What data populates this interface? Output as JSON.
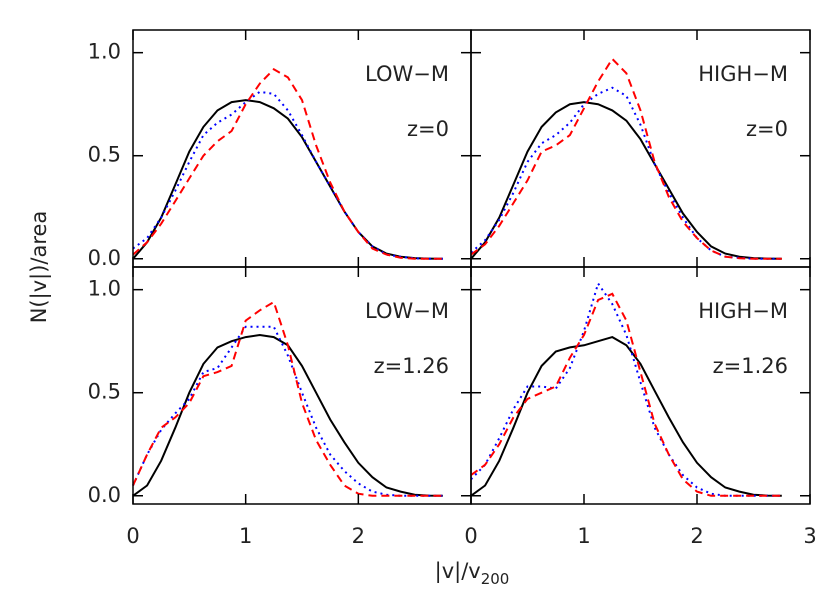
{
  "xlabel": "|v|/v",
  "xlabel_sub": "200",
  "ylabel": "N(|v|)/area",
  "chart_data": [
    {
      "type": "line",
      "labels": [
        "LOW−M",
        "z=0"
      ],
      "xlim": [
        0,
        3
      ],
      "ylim": [
        -0.04,
        1.11
      ],
      "yticks": [
        {
          "value": 0,
          "label": "0.0"
        },
        {
          "value": 0.5,
          "label": "0.5"
        },
        {
          "value": 1,
          "label": "1.0"
        }
      ],
      "x": [
        0,
        0.125,
        0.25,
        0.375,
        0.5,
        0.625,
        0.75,
        0.875,
        1,
        1.125,
        1.25,
        1.375,
        1.5,
        1.625,
        1.75,
        1.875,
        2,
        2.125,
        2.25,
        2.375,
        2.5,
        2.625,
        2.75
      ],
      "series": [
        {
          "color": "#000000",
          "dash": "none",
          "values": [
            0,
            0.08,
            0.2,
            0.36,
            0.52,
            0.64,
            0.72,
            0.76,
            0.77,
            0.76,
            0.73,
            0.68,
            0.59,
            0.47,
            0.35,
            0.23,
            0.13,
            0.06,
            0.025,
            0.01,
            0.003,
            0.001,
            0
          ]
        },
        {
          "color": "#0000ff",
          "dash": "2,4",
          "values": [
            0.05,
            0.1,
            0.2,
            0.33,
            0.47,
            0.6,
            0.66,
            0.7,
            0.76,
            0.81,
            0.8,
            0.72,
            0.6,
            0.47,
            0.35,
            0.23,
            0.13,
            0.06,
            0.02,
            0.01,
            0.002,
            0,
            0
          ]
        },
        {
          "color": "#ff0000",
          "dash": "8,5",
          "values": [
            0.02,
            0.08,
            0.17,
            0.28,
            0.39,
            0.5,
            0.57,
            0.62,
            0.75,
            0.85,
            0.92,
            0.88,
            0.77,
            0.55,
            0.37,
            0.23,
            0.13,
            0.05,
            0.02,
            0.005,
            0,
            0,
            0
          ]
        }
      ]
    },
    {
      "type": "line",
      "labels": [
        "HIGH−M",
        "z=0"
      ],
      "xlim": [
        0,
        3
      ],
      "ylim": [
        -0.04,
        1.11
      ],
      "x": [
        0,
        0.125,
        0.25,
        0.375,
        0.5,
        0.625,
        0.75,
        0.875,
        1,
        1.125,
        1.25,
        1.375,
        1.5,
        1.625,
        1.75,
        1.875,
        2,
        2.125,
        2.25,
        2.375,
        2.5,
        2.625,
        2.75
      ],
      "series": [
        {
          "color": "#000000",
          "dash": "none",
          "values": [
            0,
            0.08,
            0.2,
            0.36,
            0.52,
            0.64,
            0.71,
            0.75,
            0.76,
            0.75,
            0.72,
            0.67,
            0.58,
            0.46,
            0.34,
            0.22,
            0.13,
            0.06,
            0.025,
            0.01,
            0.003,
            0.001,
            0
          ]
        },
        {
          "color": "#0000ff",
          "dash": "2,4",
          "values": [
            0.03,
            0.09,
            0.19,
            0.32,
            0.47,
            0.56,
            0.6,
            0.66,
            0.75,
            0.8,
            0.83,
            0.79,
            0.65,
            0.46,
            0.32,
            0.2,
            0.1,
            0.04,
            0.01,
            0.005,
            0,
            0,
            0
          ]
        },
        {
          "color": "#ff0000",
          "dash": "8,5",
          "values": [
            0.02,
            0.07,
            0.16,
            0.27,
            0.38,
            0.52,
            0.55,
            0.6,
            0.73,
            0.86,
            0.97,
            0.9,
            0.72,
            0.47,
            0.3,
            0.18,
            0.1,
            0.04,
            0.01,
            0.002,
            0,
            0,
            0
          ]
        }
      ]
    },
    {
      "type": "line",
      "labels": [
        "LOW−M",
        "z=1.26"
      ],
      "xlim": [
        0,
        3
      ],
      "ylim": [
        -0.04,
        1.11
      ],
      "xticks": [
        0,
        1,
        2
      ],
      "yticks": [
        {
          "value": 0,
          "label": "0.0"
        },
        {
          "value": 0.5,
          "label": "0.5"
        },
        {
          "value": 1,
          "label": "1.0"
        }
      ],
      "x": [
        0,
        0.125,
        0.25,
        0.375,
        0.5,
        0.625,
        0.75,
        0.875,
        1,
        1.125,
        1.25,
        1.375,
        1.5,
        1.625,
        1.75,
        1.875,
        2,
        2.125,
        2.25,
        2.375,
        2.5,
        2.625,
        2.75
      ],
      "series": [
        {
          "color": "#000000",
          "dash": "none",
          "values": [
            0,
            0.05,
            0.17,
            0.33,
            0.5,
            0.64,
            0.72,
            0.75,
            0.77,
            0.78,
            0.77,
            0.73,
            0.63,
            0.5,
            0.37,
            0.26,
            0.16,
            0.09,
            0.04,
            0.02,
            0.005,
            0.001,
            0
          ]
        },
        {
          "color": "#0000ff",
          "dash": "2,4",
          "values": [
            0.05,
            0.2,
            0.32,
            0.4,
            0.47,
            0.6,
            0.62,
            0.72,
            0.82,
            0.82,
            0.82,
            0.68,
            0.5,
            0.33,
            0.2,
            0.12,
            0.06,
            0.02,
            0.005,
            0,
            0,
            0,
            0
          ]
        },
        {
          "color": "#ff0000",
          "dash": "8,5",
          "values": [
            0.05,
            0.2,
            0.33,
            0.38,
            0.45,
            0.58,
            0.6,
            0.63,
            0.85,
            0.9,
            0.94,
            0.73,
            0.45,
            0.27,
            0.15,
            0.05,
            0.01,
            0,
            0,
            0,
            0,
            0,
            0
          ]
        }
      ]
    },
    {
      "type": "line",
      "labels": [
        "HIGH−M",
        "z=1.26"
      ],
      "xlim": [
        0,
        3
      ],
      "ylim": [
        -0.04,
        1.11
      ],
      "xticks": [
        0,
        1,
        2,
        3
      ],
      "x": [
        0,
        0.125,
        0.25,
        0.375,
        0.5,
        0.625,
        0.75,
        0.875,
        1,
        1.125,
        1.25,
        1.375,
        1.5,
        1.625,
        1.75,
        1.875,
        2,
        2.125,
        2.25,
        2.375,
        2.5,
        2.625,
        2.75
      ],
      "series": [
        {
          "color": "#000000",
          "dash": "none",
          "values": [
            0,
            0.05,
            0.17,
            0.33,
            0.5,
            0.63,
            0.7,
            0.72,
            0.73,
            0.75,
            0.77,
            0.73,
            0.64,
            0.51,
            0.38,
            0.26,
            0.16,
            0.09,
            0.04,
            0.02,
            0.005,
            0.001,
            0
          ]
        },
        {
          "color": "#0000ff",
          "dash": "2,4",
          "values": [
            0.08,
            0.15,
            0.28,
            0.42,
            0.53,
            0.53,
            0.52,
            0.62,
            0.8,
            1.03,
            0.93,
            0.78,
            0.55,
            0.33,
            0.2,
            0.1,
            0.04,
            0.01,
            0,
            0,
            0,
            0,
            0
          ]
        },
        {
          "color": "#ff0000",
          "dash": "8,5",
          "values": [
            0.1,
            0.15,
            0.25,
            0.38,
            0.47,
            0.5,
            0.53,
            0.67,
            0.78,
            0.95,
            0.98,
            0.85,
            0.6,
            0.35,
            0.2,
            0.08,
            0.02,
            0,
            0,
            0,
            0,
            0,
            0
          ]
        }
      ]
    }
  ]
}
